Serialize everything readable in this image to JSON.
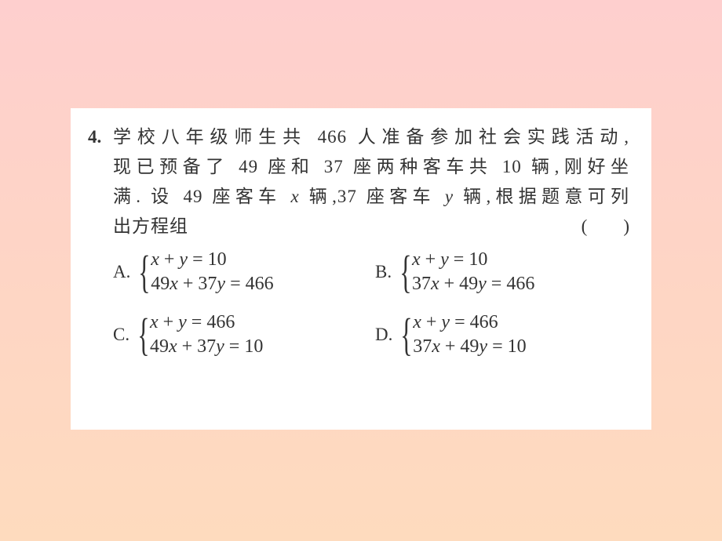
{
  "question": {
    "number": "4.",
    "line1_after_num": "学校八年级师生共 466 人准备参加社会实践活动,",
    "line2": "现已预备了 49 座和 37 座两种客车共 10 辆,刚好坐",
    "line3_prefix": "满. 设 49 座客车 ",
    "line3_var1": "x",
    "line3_mid": " 辆,37 座客车 ",
    "line3_var2": "y",
    "line3_suffix": " 辆,根据题意可列",
    "line4": "出方程组",
    "paren": "(　　)"
  },
  "options": {
    "A": {
      "label": "A.",
      "eq1_lhs": "x + y",
      "eq1_rhs": "10",
      "eq2_lhs": "49x + 37y",
      "eq2_rhs": "466"
    },
    "B": {
      "label": "B.",
      "eq1_lhs": "x + y",
      "eq1_rhs": "10",
      "eq2_lhs": "37x + 49y",
      "eq2_rhs": "466"
    },
    "C": {
      "label": "C.",
      "eq1_lhs": "x + y",
      "eq1_rhs": "466",
      "eq2_lhs": "49x + 37y",
      "eq2_rhs": "10"
    },
    "D": {
      "label": "D.",
      "eq1_lhs": "x + y",
      "eq1_rhs": "466",
      "eq2_lhs": "37x + 49y",
      "eq2_rhs": "10"
    }
  },
  "style": {
    "background_gradient": [
      "#fecfce",
      "#fed5c5",
      "#fedbbe"
    ],
    "box_bg": "#ffffff",
    "text_color": "#333333",
    "font_size_body": 23,
    "font_size_brace": 58
  }
}
